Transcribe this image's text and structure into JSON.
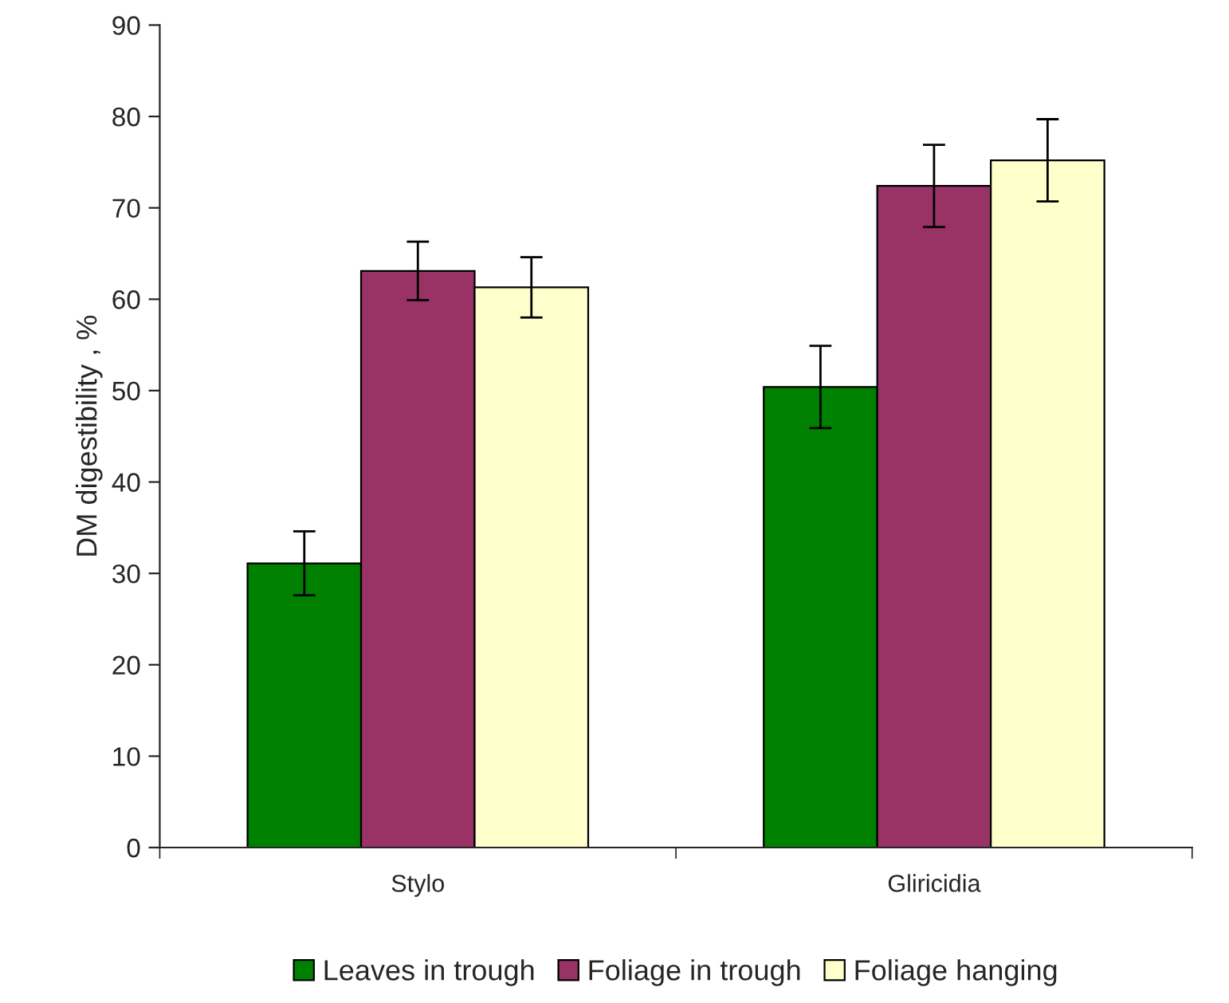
{
  "chart_data": {
    "type": "bar",
    "ylabel": "DM digestibility , %",
    "categories": [
      "Stylo",
      "Gliricidia"
    ],
    "series": [
      {
        "name": "Leaves in trough",
        "color": "#008000",
        "values": [
          31.1,
          50.4
        ],
        "errors": [
          3.5,
          4.5
        ]
      },
      {
        "name": "Foliage in trough",
        "color": "#993366",
        "values": [
          63.1,
          72.4
        ],
        "errors": [
          3.2,
          4.5
        ]
      },
      {
        "name": "Foliage hanging",
        "color": "#ffffcc",
        "values": [
          61.3,
          75.2
        ],
        "errors": [
          3.3,
          4.5
        ]
      }
    ],
    "ylim": [
      0,
      90
    ],
    "yticks": [
      0,
      10,
      20,
      30,
      40,
      50,
      60,
      70,
      80,
      90
    ],
    "grid": false,
    "legend": "bottom"
  }
}
